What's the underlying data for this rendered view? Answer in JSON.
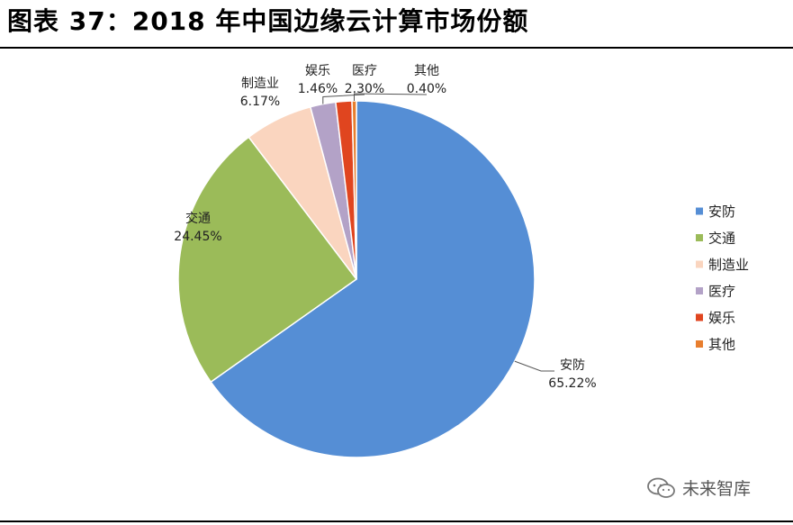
{
  "page": {
    "title": "图表 37：2018 年中国边缘云计算市场份额",
    "watermark": "未来智库"
  },
  "chart_data": {
    "type": "pie",
    "title": "",
    "categories": [
      "安防",
      "交通",
      "制造业",
      "医疗",
      "娱乐",
      "其他"
    ],
    "values": [
      65.22,
      24.45,
      6.17,
      2.3,
      1.46,
      0.4
    ],
    "value_labels": [
      "65.22%",
      "24.45%",
      "6.17%",
      "2.30%",
      "1.46%",
      "0.40%"
    ],
    "colors": [
      "#558ED5",
      "#9BBB59",
      "#FAD5BF",
      "#B3A2C7",
      "#E0451F",
      "#E87E2E"
    ],
    "legend_position": "right",
    "start": "12 o'clock, clockwise"
  }
}
